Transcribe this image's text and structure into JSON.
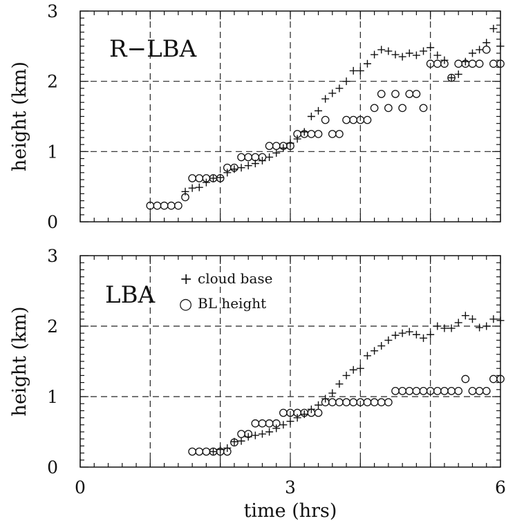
{
  "chart_data": [
    {
      "type": "scatter",
      "title": "R−LBA",
      "xlabel": "",
      "ylabel": "height (km)",
      "xlim": [
        0,
        6
      ],
      "ylim": [
        0,
        3
      ],
      "yticks": [
        "0",
        "1",
        "2",
        "3"
      ],
      "grid": "dashed lines at x = 1, 2, 3, 4, 5 and y = 1, 2",
      "series": [
        {
          "name": "cloud base",
          "marker": "plus",
          "points": [
            [
              1.5,
              0.43
            ],
            [
              1.6,
              0.48
            ],
            [
              1.7,
              0.49
            ],
            [
              1.8,
              0.56
            ],
            [
              1.9,
              0.62
            ],
            [
              2.0,
              0.63
            ],
            [
              2.1,
              0.7
            ],
            [
              2.2,
              0.75
            ],
            [
              2.3,
              0.77
            ],
            [
              2.4,
              0.8
            ],
            [
              2.5,
              0.83
            ],
            [
              2.6,
              0.87
            ],
            [
              2.7,
              0.92
            ],
            [
              2.8,
              0.98
            ],
            [
              2.9,
              1.05
            ],
            [
              3.0,
              1.12
            ],
            [
              3.1,
              1.18
            ],
            [
              3.2,
              1.28
            ],
            [
              3.3,
              1.5
            ],
            [
              3.4,
              1.58
            ],
            [
              3.5,
              1.75
            ],
            [
              3.6,
              1.83
            ],
            [
              3.7,
              1.9
            ],
            [
              3.8,
              2.0
            ],
            [
              3.9,
              2.15
            ],
            [
              4.0,
              2.15
            ],
            [
              4.1,
              2.25
            ],
            [
              4.2,
              2.38
            ],
            [
              4.3,
              2.45
            ],
            [
              4.4,
              2.43
            ],
            [
              4.5,
              2.38
            ],
            [
              4.6,
              2.35
            ],
            [
              4.7,
              2.4
            ],
            [
              4.8,
              2.37
            ],
            [
              4.9,
              2.43
            ],
            [
              5.0,
              2.48
            ],
            [
              5.1,
              2.37
            ],
            [
              5.2,
              2.3
            ],
            [
              5.3,
              2.05
            ],
            [
              5.4,
              2.1
            ],
            [
              5.5,
              2.28
            ],
            [
              5.6,
              2.4
            ],
            [
              5.7,
              2.45
            ],
            [
              5.8,
              2.55
            ],
            [
              5.9,
              2.75
            ],
            [
              6.0,
              2.5
            ]
          ]
        },
        {
          "name": "BL height",
          "marker": "circle",
          "points": [
            [
              1.0,
              0.23
            ],
            [
              1.1,
              0.23
            ],
            [
              1.2,
              0.23
            ],
            [
              1.3,
              0.23
            ],
            [
              1.4,
              0.23
            ],
            [
              1.5,
              0.35
            ],
            [
              1.6,
              0.62
            ],
            [
              1.7,
              0.62
            ],
            [
              1.8,
              0.62
            ],
            [
              1.9,
              0.62
            ],
            [
              2.0,
              0.62
            ],
            [
              2.1,
              0.77
            ],
            [
              2.2,
              0.77
            ],
            [
              2.3,
              0.92
            ],
            [
              2.4,
              0.92
            ],
            [
              2.5,
              0.92
            ],
            [
              2.6,
              0.92
            ],
            [
              2.7,
              1.08
            ],
            [
              2.8,
              1.08
            ],
            [
              2.9,
              1.08
            ],
            [
              3.0,
              1.08
            ],
            [
              3.1,
              1.25
            ],
            [
              3.2,
              1.25
            ],
            [
              3.3,
              1.25
            ],
            [
              3.4,
              1.25
            ],
            [
              3.5,
              1.45
            ],
            [
              3.6,
              1.25
            ],
            [
              3.7,
              1.25
            ],
            [
              3.8,
              1.45
            ],
            [
              3.9,
              1.45
            ],
            [
              4.0,
              1.45
            ],
            [
              4.1,
              1.45
            ],
            [
              4.2,
              1.62
            ],
            [
              4.3,
              1.82
            ],
            [
              4.4,
              1.62
            ],
            [
              4.5,
              1.82
            ],
            [
              4.6,
              1.62
            ],
            [
              4.7,
              1.82
            ],
            [
              4.8,
              1.82
            ],
            [
              4.9,
              1.62
            ],
            [
              5.0,
              2.25
            ],
            [
              5.1,
              2.25
            ],
            [
              5.2,
              2.25
            ],
            [
              5.3,
              2.05
            ],
            [
              5.4,
              2.25
            ],
            [
              5.5,
              2.25
            ],
            [
              5.6,
              2.25
            ],
            [
              5.7,
              2.25
            ],
            [
              5.8,
              2.45
            ],
            [
              5.9,
              2.25
            ],
            [
              6.0,
              2.25
            ]
          ]
        }
      ]
    },
    {
      "type": "scatter",
      "title": "LBA",
      "xlabel": "time (hrs)",
      "ylabel": "height (km)",
      "xlim": [
        0,
        6
      ],
      "ylim": [
        0,
        3
      ],
      "xticks": [
        "0",
        "3",
        "6"
      ],
      "yticks": [
        "0",
        "1",
        "2",
        "3"
      ],
      "grid": "dashed lines at x = 1, 2, 3, 4, 5 and y = 1, 2",
      "legend": {
        "position": "top-left",
        "entries": [
          {
            "symbol": "+",
            "label": "cloud base"
          },
          {
            "symbol": "○",
            "label": "BL height"
          }
        ]
      },
      "series": [
        {
          "name": "cloud base",
          "marker": "plus",
          "points": [
            [
              1.9,
              0.22
            ],
            [
              2.0,
              0.25
            ],
            [
              2.1,
              0.27
            ],
            [
              2.2,
              0.36
            ],
            [
              2.3,
              0.37
            ],
            [
              2.4,
              0.43
            ],
            [
              2.5,
              0.45
            ],
            [
              2.6,
              0.47
            ],
            [
              2.7,
              0.5
            ],
            [
              2.8,
              0.55
            ],
            [
              2.9,
              0.6
            ],
            [
              3.0,
              0.65
            ],
            [
              3.1,
              0.7
            ],
            [
              3.2,
              0.75
            ],
            [
              3.3,
              0.82
            ],
            [
              3.4,
              0.88
            ],
            [
              3.5,
              0.97
            ],
            [
              3.6,
              1.05
            ],
            [
              3.7,
              1.18
            ],
            [
              3.8,
              1.3
            ],
            [
              3.9,
              1.38
            ],
            [
              4.0,
              1.4
            ],
            [
              4.1,
              1.58
            ],
            [
              4.2,
              1.65
            ],
            [
              4.3,
              1.72
            ],
            [
              4.4,
              1.8
            ],
            [
              4.5,
              1.87
            ],
            [
              4.6,
              1.9
            ],
            [
              4.7,
              1.92
            ],
            [
              4.8,
              1.88
            ],
            [
              4.9,
              1.83
            ],
            [
              5.0,
              1.88
            ],
            [
              5.1,
              2.0
            ],
            [
              5.2,
              1.97
            ],
            [
              5.3,
              1.97
            ],
            [
              5.4,
              2.05
            ],
            [
              5.5,
              2.15
            ],
            [
              5.6,
              2.1
            ],
            [
              5.7,
              1.98
            ],
            [
              5.8,
              2.0
            ],
            [
              5.9,
              2.1
            ],
            [
              6.0,
              2.08
            ]
          ]
        },
        {
          "name": "BL height",
          "marker": "circle",
          "points": [
            [
              1.6,
              0.22
            ],
            [
              1.7,
              0.22
            ],
            [
              1.8,
              0.22
            ],
            [
              1.9,
              0.22
            ],
            [
              2.0,
              0.22
            ],
            [
              2.1,
              0.22
            ],
            [
              2.2,
              0.35
            ],
            [
              2.3,
              0.47
            ],
            [
              2.4,
              0.47
            ],
            [
              2.5,
              0.62
            ],
            [
              2.6,
              0.62
            ],
            [
              2.7,
              0.62
            ],
            [
              2.8,
              0.62
            ],
            [
              2.9,
              0.77
            ],
            [
              3.0,
              0.77
            ],
            [
              3.1,
              0.77
            ],
            [
              3.2,
              0.77
            ],
            [
              3.3,
              0.77
            ],
            [
              3.4,
              0.77
            ],
            [
              3.5,
              0.92
            ],
            [
              3.6,
              0.92
            ],
            [
              3.7,
              0.92
            ],
            [
              3.8,
              0.92
            ],
            [
              3.9,
              0.92
            ],
            [
              4.0,
              0.92
            ],
            [
              4.1,
              0.92
            ],
            [
              4.2,
              0.92
            ],
            [
              4.3,
              0.92
            ],
            [
              4.4,
              0.92
            ],
            [
              4.5,
              1.08
            ],
            [
              4.6,
              1.08
            ],
            [
              4.7,
              1.08
            ],
            [
              4.8,
              1.08
            ],
            [
              4.9,
              1.08
            ],
            [
              5.0,
              1.08
            ],
            [
              5.1,
              1.08
            ],
            [
              5.2,
              1.08
            ],
            [
              5.3,
              1.08
            ],
            [
              5.4,
              1.08
            ],
            [
              5.5,
              1.25
            ],
            [
              5.6,
              1.08
            ],
            [
              5.7,
              1.08
            ],
            [
              5.8,
              1.08
            ],
            [
              5.9,
              1.25
            ],
            [
              6.0,
              1.25
            ]
          ]
        }
      ]
    }
  ]
}
